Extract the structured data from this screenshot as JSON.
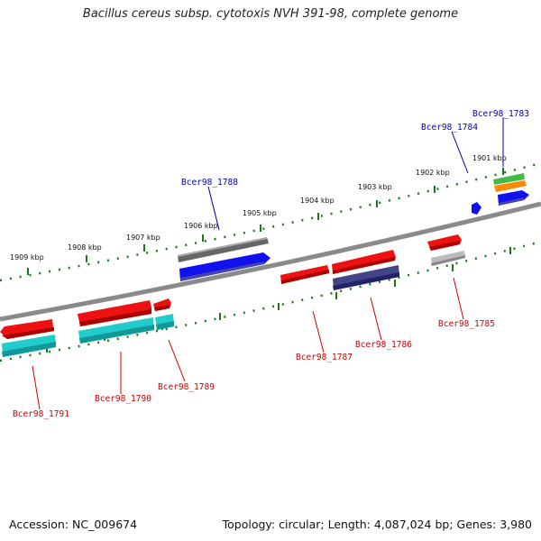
{
  "title": "Bacillus cereus subsp. cytotoxis NVH 391-98, complete genome",
  "footer": {
    "accession": "Accession: NC_009674",
    "info": "Topology: circular; Length: 4,087,024 bp; Genes: 3,980"
  },
  "kbp_ticks": [
    "1901 kbp",
    "1902 kbp",
    "1903 kbp",
    "1904 kbp",
    "1905 kbp",
    "1906 kbp",
    "1907 kbp",
    "1908 kbp",
    "1909 kbp"
  ],
  "genes": [
    {
      "label": "Bcer98_1783",
      "color": "#0000aa"
    },
    {
      "label": "Bcer98_1784",
      "color": "#0000aa"
    },
    {
      "label": "Bcer98_1785",
      "color": "#cc0000"
    },
    {
      "label": "Bcer98_1786",
      "color": "#cc0000"
    },
    {
      "label": "Bcer98_1787",
      "color": "#cc0000"
    },
    {
      "label": "Bcer98_1788",
      "color": "#0000aa"
    },
    {
      "label": "Bcer98_1789",
      "color": "#cc0000"
    },
    {
      "label": "Bcer98_1790",
      "color": "#cc0000"
    },
    {
      "label": "Bcer98_1791",
      "color": "#cc0000"
    }
  ],
  "colors": {
    "backbone": "#888888",
    "ticks": "#1a7a1a",
    "red": "#ee1111",
    "cyan": "#22cccc",
    "blue": "#1111ee",
    "gray": "#666666",
    "slate": "#444488",
    "lightgray": "#bbbbbb",
    "green": "#44bb44",
    "orange": "#ff8800"
  }
}
